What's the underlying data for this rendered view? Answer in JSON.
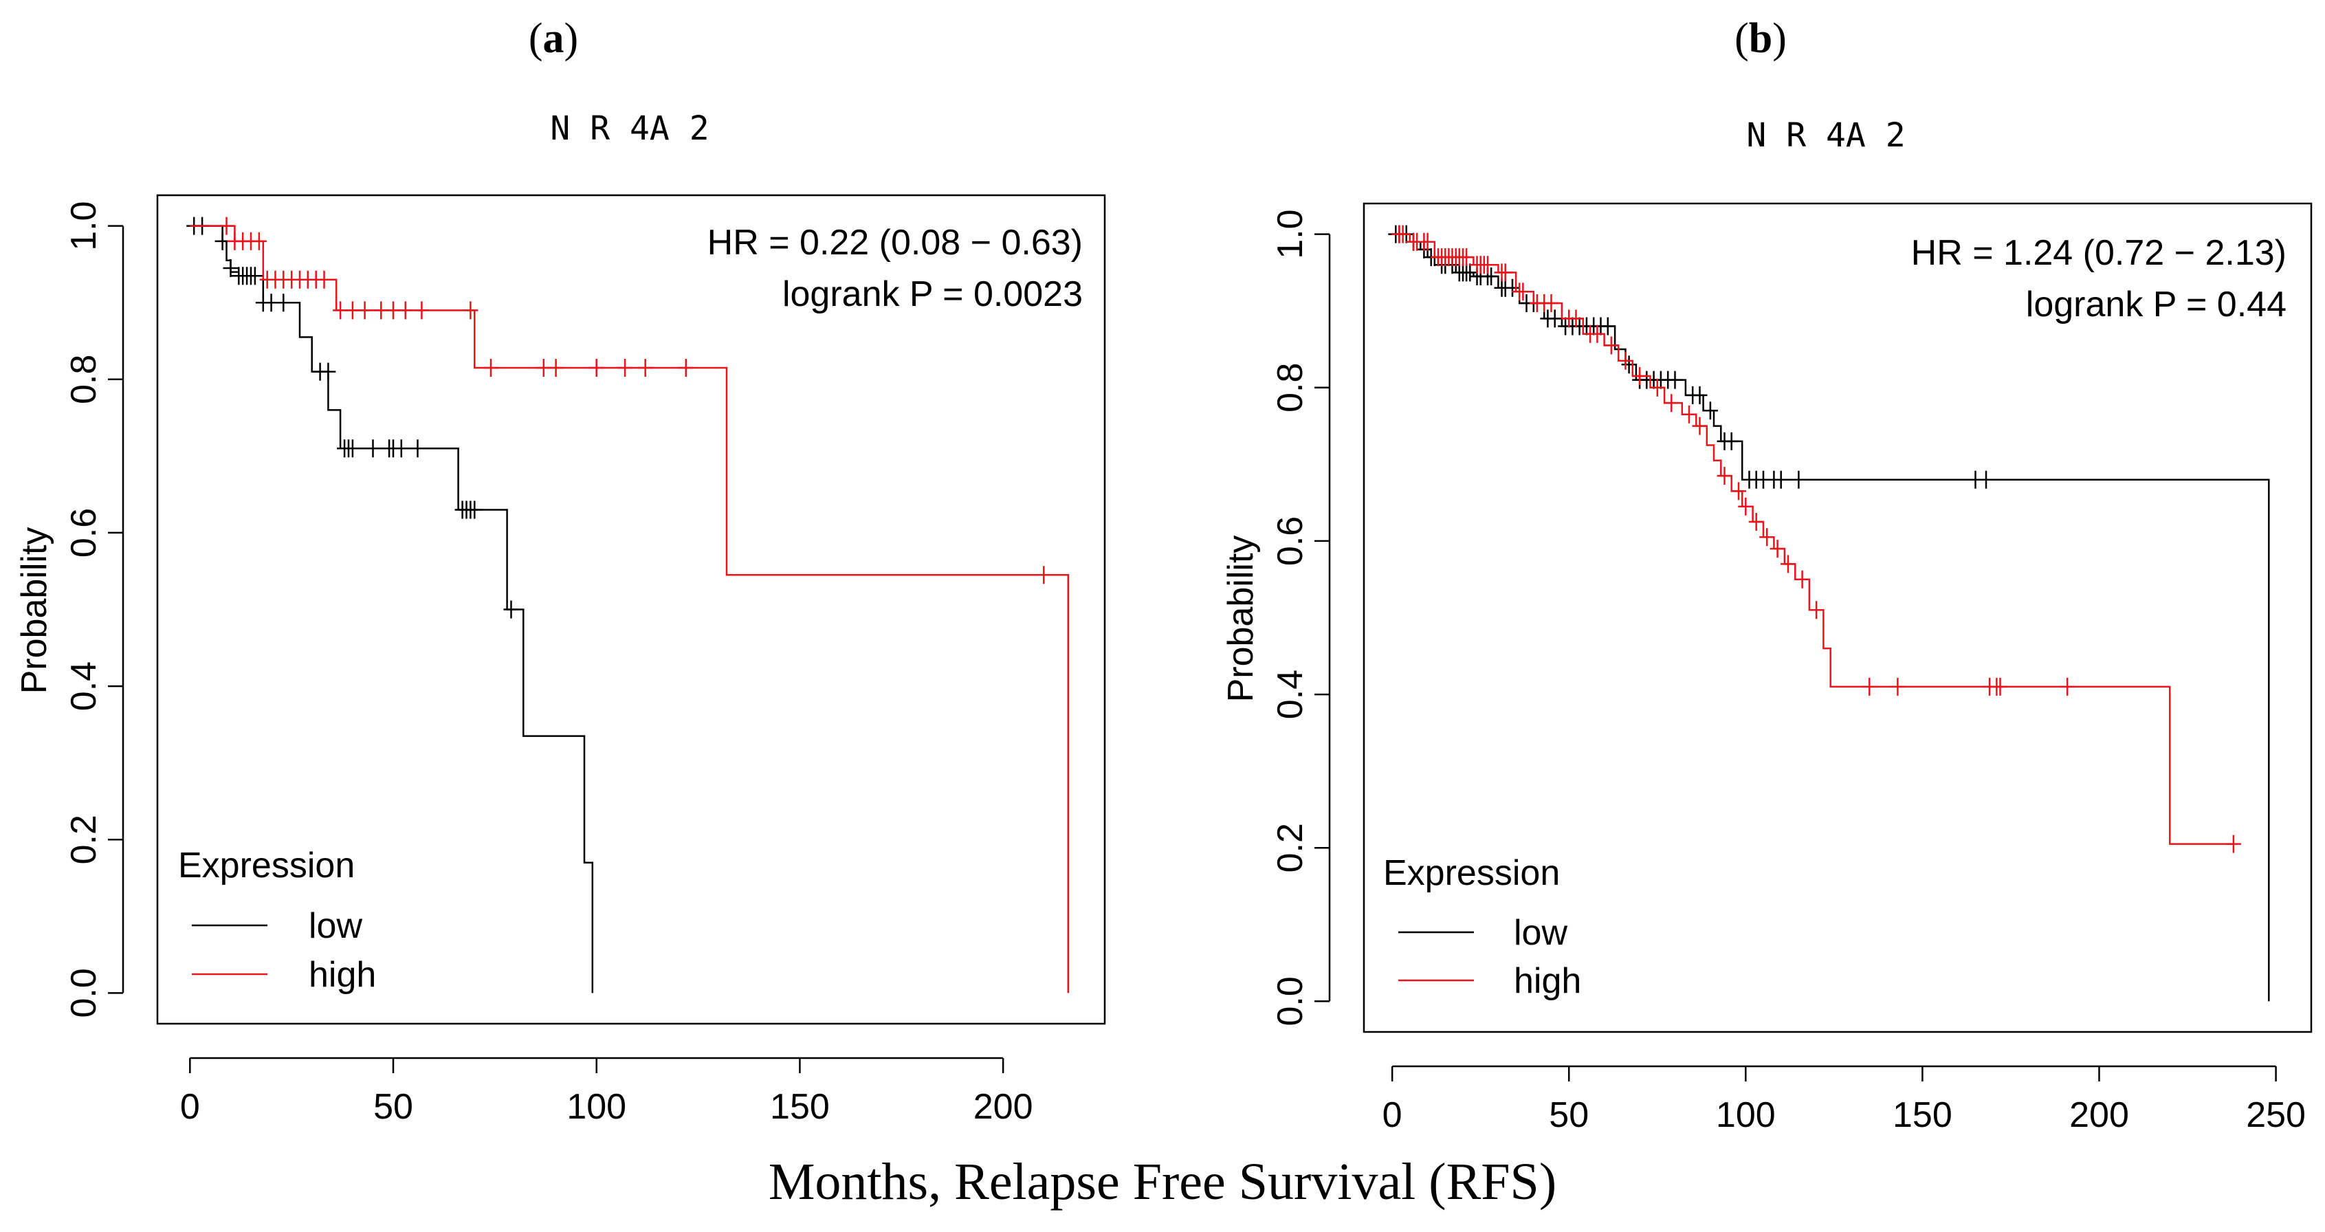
{
  "xlabel_common": "Months, Relapse Free Survival (RFS)",
  "colors": {
    "low": "#000000",
    "high": "#e8141b",
    "axis": "#000000"
  },
  "chart_data": [
    {
      "type": "line",
      "panel": "(a)",
      "panel_letter": "a",
      "title": "N R 4A 2",
      "xlabel": "Months, Relapse Free Survival (RFS)",
      "ylabel": "Probability",
      "xlim": [
        -8,
        225
      ],
      "ylim": [
        -0.04,
        1.04
      ],
      "xticks": [
        0,
        50,
        100,
        150,
        200
      ],
      "yticks": [
        0.0,
        0.2,
        0.4,
        0.6,
        0.8,
        1.0
      ],
      "yticklabels": [
        "0.0",
        "0.2",
        "0.4",
        "0.6",
        "0.8",
        "1.0"
      ],
      "annotation": [
        "HR = 0.22 (0.08 − 0.63)",
        "logrank P = 0.0023"
      ],
      "legend": {
        "title": "Expression",
        "position": "bottom-left",
        "entries": [
          "low",
          "high"
        ]
      },
      "series": [
        {
          "name": "low",
          "steps": [
            [
              0,
              1.0
            ],
            [
              8,
              0.98
            ],
            [
              9,
              0.955
            ],
            [
              10,
              0.94
            ],
            [
              12,
              0.935
            ],
            [
              18,
              0.9
            ],
            [
              27,
              0.855
            ],
            [
              30,
              0.81
            ],
            [
              34,
              0.76
            ],
            [
              37,
              0.71
            ],
            [
              66,
              0.63
            ],
            [
              78,
              0.5
            ],
            [
              82,
              0.335
            ],
            [
              97,
              0.17
            ],
            [
              99,
              0.0
            ]
          ],
          "censor": [
            [
              1,
              1.0
            ],
            [
              3,
              1.0
            ],
            [
              8,
              0.98
            ],
            [
              10,
              0.945
            ],
            [
              12,
              0.935
            ],
            [
              13,
              0.935
            ],
            [
              14,
              0.935
            ],
            [
              15,
              0.935
            ],
            [
              16,
              0.935
            ],
            [
              18,
              0.9
            ],
            [
              20,
              0.9
            ],
            [
              23,
              0.9
            ],
            [
              32,
              0.81
            ],
            [
              34,
              0.81
            ],
            [
              38,
              0.71
            ],
            [
              39,
              0.71
            ],
            [
              40,
              0.71
            ],
            [
              45,
              0.71
            ],
            [
              49,
              0.71
            ],
            [
              50,
              0.71
            ],
            [
              52,
              0.71
            ],
            [
              56,
              0.71
            ],
            [
              67,
              0.63
            ],
            [
              68,
              0.63
            ],
            [
              69,
              0.63
            ],
            [
              70,
              0.63
            ],
            [
              79,
              0.5
            ]
          ]
        },
        {
          "name": "high",
          "steps": [
            [
              0,
              1.0
            ],
            [
              11,
              0.98
            ],
            [
              18,
              0.93
            ],
            [
              36,
              0.89
            ],
            [
              70,
              0.815
            ],
            [
              132,
              0.545
            ],
            [
              216,
              0.0
            ]
          ],
          "censor": [
            [
              9,
              1.0
            ],
            [
              11,
              0.98
            ],
            [
              13,
              0.98
            ],
            [
              15,
              0.98
            ],
            [
              17,
              0.98
            ],
            [
              19,
              0.93
            ],
            [
              21,
              0.93
            ],
            [
              23,
              0.93
            ],
            [
              25,
              0.93
            ],
            [
              27,
              0.93
            ],
            [
              29,
              0.93
            ],
            [
              31,
              0.93
            ],
            [
              33,
              0.93
            ],
            [
              37,
              0.89
            ],
            [
              40,
              0.89
            ],
            [
              43,
              0.89
            ],
            [
              47,
              0.89
            ],
            [
              50,
              0.89
            ],
            [
              53,
              0.89
            ],
            [
              57,
              0.89
            ],
            [
              69,
              0.89
            ],
            [
              74,
              0.815
            ],
            [
              87,
              0.815
            ],
            [
              90,
              0.815
            ],
            [
              100,
              0.815
            ],
            [
              107,
              0.815
            ],
            [
              112,
              0.815
            ],
            [
              122,
              0.815
            ],
            [
              210,
              0.545
            ]
          ]
        }
      ]
    },
    {
      "type": "line",
      "panel": "(b)",
      "panel_letter": "b",
      "title": "N R 4A 2",
      "xlabel": "Months, Relapse Free Survival (RFS)",
      "ylabel": "Probability",
      "xlim": [
        -8,
        260
      ],
      "ylim": [
        -0.04,
        1.04
      ],
      "xticks": [
        0,
        50,
        100,
        150,
        200,
        250
      ],
      "yticks": [
        0.0,
        0.2,
        0.4,
        0.6,
        0.8,
        1.0
      ],
      "yticklabels": [
        "0.0",
        "0.2",
        "0.4",
        "0.6",
        "0.8",
        "1.0"
      ],
      "annotation": [
        "HR = 1.24 (0.72 − 2.13)",
        "logrank P = 0.44"
      ],
      "legend": {
        "title": "Expression",
        "position": "bottom-left",
        "entries": [
          "low",
          "high"
        ]
      },
      "series": [
        {
          "name": "low",
          "steps": [
            [
              0,
              1.0
            ],
            [
              5,
              0.99
            ],
            [
              8,
              0.98
            ],
            [
              10,
              0.97
            ],
            [
              13,
              0.96
            ],
            [
              18,
              0.95
            ],
            [
              23,
              0.945
            ],
            [
              30,
              0.93
            ],
            [
              36,
              0.91
            ],
            [
              43,
              0.89
            ],
            [
              48,
              0.88
            ],
            [
              63,
              0.85
            ],
            [
              66,
              0.83
            ],
            [
              69,
              0.81
            ],
            [
              83,
              0.79
            ],
            [
              88,
              0.77
            ],
            [
              91,
              0.75
            ],
            [
              93,
              0.73
            ],
            [
              99,
              0.68
            ],
            [
              248,
              0.0
            ]
          ],
          "censor": [
            [
              1,
              1.0
            ],
            [
              2,
              1.0
            ],
            [
              4,
              1.0
            ],
            [
              6,
              0.99
            ],
            [
              9,
              0.98
            ],
            [
              11,
              0.97
            ],
            [
              12,
              0.97
            ],
            [
              14,
              0.96
            ],
            [
              15,
              0.96
            ],
            [
              17,
              0.96
            ],
            [
              19,
              0.95
            ],
            [
              20,
              0.95
            ],
            [
              21,
              0.95
            ],
            [
              22,
              0.95
            ],
            [
              24,
              0.945
            ],
            [
              25,
              0.945
            ],
            [
              27,
              0.945
            ],
            [
              28,
              0.945
            ],
            [
              31,
              0.93
            ],
            [
              32,
              0.93
            ],
            [
              34,
              0.93
            ],
            [
              38,
              0.91
            ],
            [
              40,
              0.91
            ],
            [
              44,
              0.89
            ],
            [
              46,
              0.89
            ],
            [
              49,
              0.88
            ],
            [
              51,
              0.88
            ],
            [
              53,
              0.88
            ],
            [
              55,
              0.88
            ],
            [
              57,
              0.88
            ],
            [
              59,
              0.88
            ],
            [
              61,
              0.88
            ],
            [
              67,
              0.83
            ],
            [
              70,
              0.81
            ],
            [
              72,
              0.81
            ],
            [
              74,
              0.81
            ],
            [
              76,
              0.81
            ],
            [
              78,
              0.81
            ],
            [
              80,
              0.81
            ],
            [
              85,
              0.79
            ],
            [
              87,
              0.79
            ],
            [
              90,
              0.77
            ],
            [
              94,
              0.73
            ],
            [
              96,
              0.73
            ],
            [
              101,
              0.68
            ],
            [
              103,
              0.68
            ],
            [
              105,
              0.68
            ],
            [
              108,
              0.68
            ],
            [
              110,
              0.68
            ],
            [
              115,
              0.68
            ],
            [
              165,
              0.68
            ],
            [
              168,
              0.68
            ]
          ]
        },
        {
          "name": "high",
          "steps": [
            [
              0,
              1.0
            ],
            [
              5,
              0.99
            ],
            [
              12,
              0.97
            ],
            [
              23,
              0.96
            ],
            [
              30,
              0.95
            ],
            [
              35,
              0.925
            ],
            [
              40,
              0.91
            ],
            [
              48,
              0.89
            ],
            [
              54,
              0.87
            ],
            [
              60,
              0.855
            ],
            [
              64,
              0.835
            ],
            [
              68,
              0.815
            ],
            [
              73,
              0.8
            ],
            [
              77,
              0.78
            ],
            [
              82,
              0.765
            ],
            [
              86,
              0.75
            ],
            [
              89,
              0.725
            ],
            [
              91,
              0.705
            ],
            [
              93,
              0.685
            ],
            [
              96,
              0.665
            ],
            [
              99,
              0.645
            ],
            [
              102,
              0.625
            ],
            [
              105,
              0.605
            ],
            [
              108,
              0.59
            ],
            [
              111,
              0.57
            ],
            [
              114,
              0.55
            ],
            [
              118,
              0.51
            ],
            [
              122,
              0.46
            ],
            [
              124,
              0.41
            ],
            [
              220,
              0.205
            ],
            [
              238,
              0.205
            ]
          ],
          "censor": [
            [
              2,
              1.0
            ],
            [
              3,
              1.0
            ],
            [
              6,
              0.99
            ],
            [
              7,
              0.99
            ],
            [
              9,
              0.99
            ],
            [
              10,
              0.99
            ],
            [
              13,
              0.97
            ],
            [
              14,
              0.97
            ],
            [
              15,
              0.97
            ],
            [
              16,
              0.97
            ],
            [
              17,
              0.97
            ],
            [
              18,
              0.97
            ],
            [
              19,
              0.97
            ],
            [
              20,
              0.97
            ],
            [
              21,
              0.97
            ],
            [
              24,
              0.96
            ],
            [
              25,
              0.96
            ],
            [
              26,
              0.96
            ],
            [
              27,
              0.96
            ],
            [
              31,
              0.95
            ],
            [
              32,
              0.95
            ],
            [
              36,
              0.925
            ],
            [
              37,
              0.925
            ],
            [
              41,
              0.91
            ],
            [
              43,
              0.91
            ],
            [
              45,
              0.91
            ],
            [
              50,
              0.89
            ],
            [
              52,
              0.89
            ],
            [
              56,
              0.87
            ],
            [
              58,
              0.87
            ],
            [
              62,
              0.855
            ],
            [
              66,
              0.835
            ],
            [
              70,
              0.815
            ],
            [
              75,
              0.8
            ],
            [
              79,
              0.78
            ],
            [
              84,
              0.765
            ],
            [
              87,
              0.75
            ],
            [
              94,
              0.685
            ],
            [
              98,
              0.665
            ],
            [
              100,
              0.645
            ],
            [
              103,
              0.625
            ],
            [
              106,
              0.605
            ],
            [
              109,
              0.59
            ],
            [
              112,
              0.57
            ],
            [
              116,
              0.55
            ],
            [
              120,
              0.51
            ],
            [
              135,
              0.41
            ],
            [
              143,
              0.41
            ],
            [
              169,
              0.41
            ],
            [
              171,
              0.41
            ],
            [
              172,
              0.41
            ],
            [
              191,
              0.41
            ],
            [
              238,
              0.205
            ]
          ]
        }
      ]
    }
  ]
}
